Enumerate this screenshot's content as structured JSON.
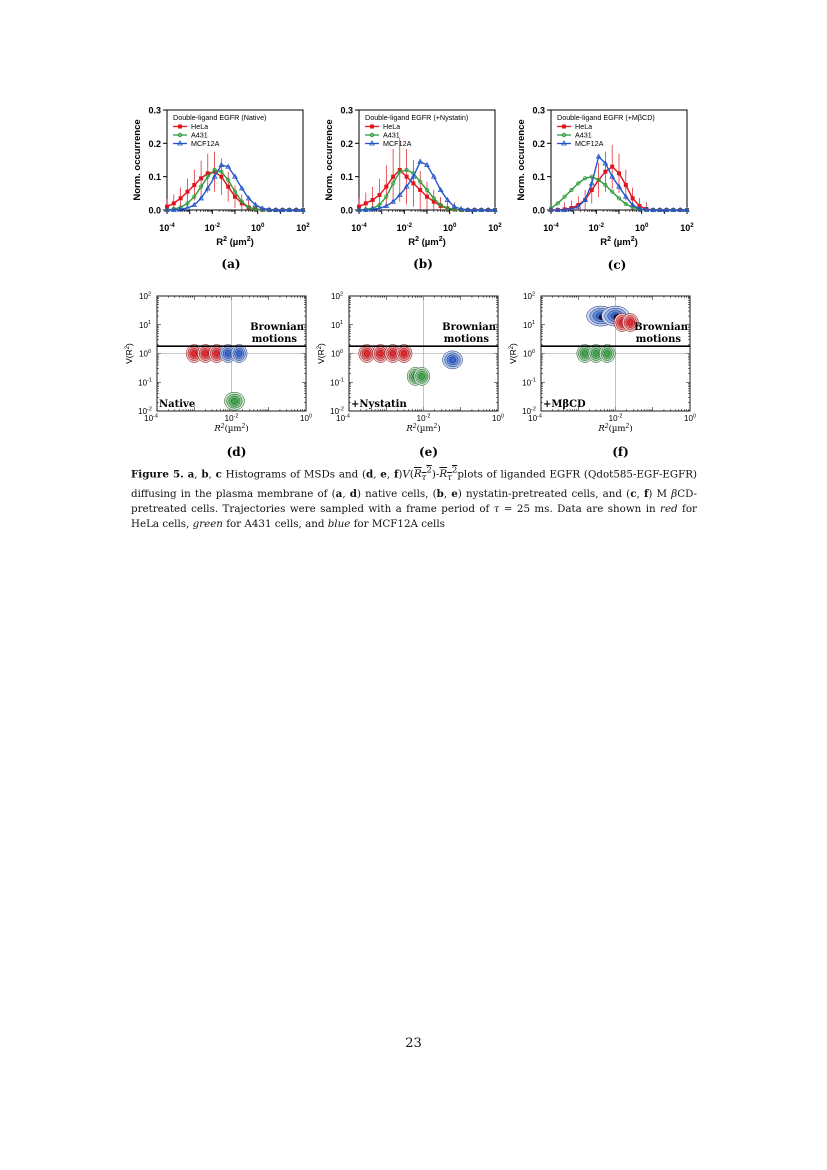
{
  "page_number": "23",
  "caption": {
    "label": "Figure 5.",
    "text_html": "<b>a</b>, <b>b</b>, <b>c</b> Histograms of MSDs and (<b>d</b>, <b>e</b>, <b>f</b>)<i>V</i>(<span style=\"text-decoration:overline\"><i>R<sub>τ</sub></i><sup>2</sup></span>)-<span style=\"text-decoration:overline\"><i>R<sub>τ</sub></i><sup>2</sup></span>plots of liganded EGFR (Qdot585-EGF-EGFR) diffusing in the plasma membrane of (<b>a</b>, <b>d</b>) native cells, (<b>b</b>, <b>e</b>) nystatin-pretreated cells, and (<b>c</b>, <b>f</b>) M <i>β</i>CD-pretreated cells. Trajectories were sampled with a frame period of <i>τ</i> = 25 ms. Data are shown in <i>red</i> for HeLa cells, <i>green</i> for A431 cells, and <i>blue</i> for MCF12A cells"
  },
  "colors": {
    "hela": "#e0141b",
    "a431": "#2e9c3b",
    "mcf12a": "#2457c9"
  },
  "histograms": {
    "ylabel": "Norm. occurrence",
    "xlabel_main": "R",
    "xlabel_sup": "2",
    "xlabel_unit": "(µm",
    "xlabel_unit_sup": "2",
    "xlabel_close": ")",
    "yticks": [
      "0.0",
      "0.1",
      "0.2",
      "0.3"
    ],
    "xtick_bases": [
      "10",
      "10",
      "10",
      "10"
    ],
    "xtick_exps": [
      "-4",
      "-2",
      "0",
      "2"
    ],
    "legend_entries": [
      "HeLa",
      "A431",
      "MCF12A"
    ],
    "panels": [
      {
        "title": "Double-ligand EGFR (Native)",
        "letter": "(a)"
      },
      {
        "title": "Double-ligand EGFR (+Nystatin)",
        "letter": "(b)"
      },
      {
        "title": "Double-ligand EGFR (+MβCD)",
        "letter": "(c)"
      }
    ]
  },
  "contours": {
    "ylabel_v": "V(R",
    "ylabel_sup": "2",
    "ylabel_close": ")",
    "xlabel": "R",
    "xlabel_sup": "2",
    "xlabel_unit": "(µm",
    "xlabel_unit_sup": "2",
    "xlabel_close": ")",
    "ytick_exps": [
      "2",
      "1",
      "0",
      "-1",
      "-2"
    ],
    "xtick_exps": [
      "-4",
      "-2",
      "0"
    ],
    "brownian_line1": "Brownian",
    "brownian_line2": "motions",
    "panels": [
      {
        "condition": "Native",
        "letter": "(d)"
      },
      {
        "condition": "+Nystatin",
        "letter": "(e)"
      },
      {
        "condition": "+MβCD",
        "letter": "(f)"
      }
    ]
  },
  "chart_data": [
    {
      "type": "line",
      "title": "Double-ligand EGFR (Native)",
      "xlabel": "R2 (µm2)",
      "ylabel": "Norm. occurrence",
      "xscale": "log",
      "xlim": [
        0.0001,
        100
      ],
      "ylim": [
        0,
        0.3
      ],
      "legend": "top-left",
      "series": [
        {
          "name": "HeLa",
          "x": [
            0.0001,
            0.0002,
            0.0004,
            0.0008,
            0.0016,
            0.0032,
            0.0063,
            0.0126,
            0.025,
            0.05,
            0.1,
            0.2,
            0.4,
            0.8,
            1.6,
            3.2,
            6.3,
            12.6,
            25,
            50,
            100
          ],
          "y": [
            0.01,
            0.02,
            0.035,
            0.055,
            0.075,
            0.095,
            0.11,
            0.115,
            0.1,
            0.07,
            0.04,
            0.02,
            0.008,
            0.003,
            0.001,
            0,
            0,
            0,
            0,
            0,
            0
          ]
        },
        {
          "name": "A431",
          "x": [
            0.0001,
            0.0002,
            0.0004,
            0.0008,
            0.0016,
            0.0032,
            0.0063,
            0.0126,
            0.025,
            0.05,
            0.1,
            0.2,
            0.4,
            0.8,
            1.6,
            3.2,
            6.3,
            12.6,
            25,
            50,
            100
          ],
          "y": [
            0,
            0.003,
            0.008,
            0.02,
            0.04,
            0.07,
            0.1,
            0.12,
            0.115,
            0.09,
            0.055,
            0.025,
            0.008,
            0.002,
            0,
            0,
            0,
            0,
            0,
            0,
            0
          ]
        },
        {
          "name": "MCF12A",
          "x": [
            0.0001,
            0.0002,
            0.0004,
            0.0008,
            0.0016,
            0.0032,
            0.0063,
            0.0126,
            0.025,
            0.05,
            0.1,
            0.2,
            0.4,
            0.8,
            1.6,
            3.2,
            6.3,
            12.6,
            25,
            50,
            100
          ],
          "y": [
            0,
            0,
            0.002,
            0.006,
            0.015,
            0.035,
            0.065,
            0.1,
            0.135,
            0.13,
            0.1,
            0.065,
            0.035,
            0.015,
            0.005,
            0.001,
            0,
            0,
            0,
            0,
            0
          ]
        }
      ]
    },
    {
      "type": "line",
      "title": "Double-ligand EGFR (+Nystatin)",
      "xlabel": "R2 (µm2)",
      "ylabel": "Norm. occurrence",
      "xscale": "log",
      "xlim": [
        0.0001,
        100
      ],
      "ylim": [
        0,
        0.3
      ],
      "legend": "top-left",
      "series": [
        {
          "name": "HeLa",
          "x": [
            0.0001,
            0.0002,
            0.0004,
            0.0008,
            0.0016,
            0.0032,
            0.0063,
            0.0126,
            0.025,
            0.05,
            0.1,
            0.2,
            0.4,
            0.8,
            1.6,
            3.2,
            6.3,
            12.6,
            25,
            50,
            100
          ],
          "y": [
            0.01,
            0.02,
            0.03,
            0.045,
            0.07,
            0.1,
            0.12,
            0.1,
            0.08,
            0.06,
            0.04,
            0.025,
            0.012,
            0.005,
            0.002,
            0,
            0,
            0,
            0,
            0,
            0
          ]
        },
        {
          "name": "A431",
          "x": [
            0.0001,
            0.0002,
            0.0004,
            0.0008,
            0.0016,
            0.0032,
            0.0063,
            0.0126,
            0.025,
            0.05,
            0.1,
            0.2,
            0.4,
            0.8,
            1.6,
            3.2,
            6.3,
            12.6,
            25,
            50,
            100
          ],
          "y": [
            0,
            0.002,
            0.005,
            0.015,
            0.04,
            0.08,
            0.115,
            0.12,
            0.11,
            0.085,
            0.06,
            0.035,
            0.015,
            0.005,
            0.001,
            0,
            0,
            0,
            0,
            0,
            0
          ]
        },
        {
          "name": "MCF12A",
          "x": [
            0.0001,
            0.0002,
            0.0004,
            0.0008,
            0.0016,
            0.0032,
            0.0063,
            0.0126,
            0.025,
            0.05,
            0.1,
            0.2,
            0.4,
            0.8,
            1.6,
            3.2,
            6.3,
            12.6,
            25,
            50,
            100
          ],
          "y": [
            0,
            0,
            0.002,
            0.005,
            0.012,
            0.025,
            0.045,
            0.07,
            0.1,
            0.145,
            0.135,
            0.1,
            0.06,
            0.03,
            0.01,
            0.003,
            0,
            0,
            0,
            0,
            0
          ]
        }
      ]
    },
    {
      "type": "line",
      "title": "Double-ligand EGFR (+MβCD)",
      "xlabel": "R2 (µm2)",
      "ylabel": "Norm. occurrence",
      "xscale": "log",
      "xlim": [
        0.0001,
        100
      ],
      "ylim": [
        0,
        0.3
      ],
      "legend": "top-left",
      "series": [
        {
          "name": "HeLa",
          "x": [
            0.0001,
            0.0002,
            0.0004,
            0.0008,
            0.0016,
            0.0032,
            0.0063,
            0.0126,
            0.025,
            0.05,
            0.1,
            0.2,
            0.4,
            0.8,
            1.6,
            3.2,
            6.3,
            12.6,
            25,
            50,
            100
          ],
          "y": [
            0,
            0,
            0.002,
            0.006,
            0.015,
            0.03,
            0.06,
            0.09,
            0.115,
            0.13,
            0.11,
            0.075,
            0.035,
            0.012,
            0.003,
            0,
            0,
            0,
            0,
            0,
            0
          ]
        },
        {
          "name": "A431",
          "x": [
            0.0001,
            0.0002,
            0.0004,
            0.0008,
            0.0016,
            0.0032,
            0.0063,
            0.0126,
            0.025,
            0.05,
            0.1,
            0.2,
            0.4,
            0.8,
            1.6,
            3.2,
            6.3,
            12.6,
            25,
            50,
            100
          ],
          "y": [
            0.005,
            0.02,
            0.04,
            0.06,
            0.08,
            0.095,
            0.1,
            0.09,
            0.075,
            0.055,
            0.035,
            0.018,
            0.008,
            0.003,
            0,
            0,
            0,
            0,
            0,
            0,
            0
          ]
        },
        {
          "name": "MCF12A",
          "x": [
            0.0001,
            0.0002,
            0.0004,
            0.0008,
            0.0016,
            0.0032,
            0.0063,
            0.0126,
            0.025,
            0.05,
            0.1,
            0.2,
            0.4,
            0.8,
            1.6,
            3.2,
            6.3,
            12.6,
            25,
            50,
            100
          ],
          "y": [
            0,
            0,
            0,
            0.003,
            0.01,
            0.03,
            0.08,
            0.16,
            0.14,
            0.1,
            0.07,
            0.04,
            0.015,
            0.004,
            0.001,
            0,
            0,
            0,
            0,
            0,
            0
          ]
        }
      ]
    },
    {
      "type": "heatmap",
      "xlabel": "R2(µm2)",
      "ylabel": "V(R2)",
      "xscale": "log",
      "yscale": "log",
      "xlim": [
        0.0001,
        1
      ],
      "ylim": [
        0.01,
        100
      ],
      "annotations": [
        "Native",
        "Brownian motions"
      ],
      "clusters": [
        {
          "cell": "HeLa",
          "x": [
            0.001,
            0.002,
            0.004
          ],
          "y": 1
        },
        {
          "cell": "MCF12A",
          "x": [
            0.008,
            0.016
          ],
          "y": 1
        },
        {
          "cell": "A431",
          "x": [
            0.012
          ],
          "y": 0.022
        }
      ]
    },
    {
      "type": "heatmap",
      "xlabel": "R2(µm2)",
      "ylabel": "V(R2)",
      "xscale": "log",
      "yscale": "log",
      "xlim": [
        0.0001,
        1
      ],
      "ylim": [
        0.01,
        100
      ],
      "annotations": [
        "+Nystatin",
        "Brownian motions"
      ],
      "clusters": [
        {
          "cell": "HeLa",
          "x": [
            0.0003,
            0.0007,
            0.0015,
            0.003
          ],
          "y": 1
        },
        {
          "cell": "A431",
          "x": [
            0.006,
            0.009
          ],
          "y": 0.16
        },
        {
          "cell": "MCF12A",
          "x": [
            0.06
          ],
          "y": 0.6
        }
      ]
    },
    {
      "type": "heatmap",
      "xlabel": "R2(µm2)",
      "ylabel": "V(R2)",
      "xscale": "log",
      "yscale": "log",
      "xlim": [
        0.0001,
        1
      ],
      "ylim": [
        0.01,
        100
      ],
      "annotations": [
        "+MβCD",
        "Brownian motions"
      ],
      "clusters": [
        {
          "cell": "A431",
          "x": [
            0.0015,
            0.003,
            0.006
          ],
          "y": 1
        },
        {
          "cell": "MCF12A",
          "x": [
            0.004,
            0.01
          ],
          "y": 20
        },
        {
          "cell": "HeLa",
          "x": [
            0.015,
            0.025
          ],
          "y": 12
        }
      ]
    }
  ]
}
